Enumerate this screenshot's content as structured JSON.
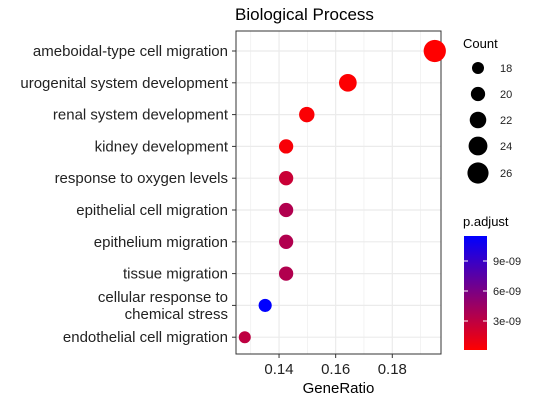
{
  "chart_data": {
    "type": "scatter",
    "title": "Biological Process",
    "xlabel": "GeneRatio",
    "ylabel": "",
    "xlim": [
      0.1248,
      0.1972
    ],
    "xticks": [
      0.14,
      0.16,
      0.18
    ],
    "xtick_labels": [
      "0.14",
      "0.16",
      "0.18"
    ],
    "grid": true,
    "categories": [
      "ameboidal-type cell migration",
      "urogenital system development",
      "renal system development",
      "kidney development",
      "response to oxygen levels",
      "epithelial cell migration",
      "epithelium migration",
      "tissue migration",
      "cellular response to\nchemical stress",
      "endothelial cell migration"
    ],
    "points": [
      {
        "term": "ameboidal-type cell migration",
        "gene_ratio": 0.195,
        "count": 27,
        "p_adjust": 1e-10
      },
      {
        "term": "urogenital system development",
        "gene_ratio": 0.1643,
        "count": 23,
        "p_adjust": 2e-10
      },
      {
        "term": "renal system development",
        "gene_ratio": 0.1498,
        "count": 21,
        "p_adjust": 3e-10
      },
      {
        "term": "kidney development",
        "gene_ratio": 0.1425,
        "count": 20,
        "p_adjust": 4e-10
      },
      {
        "term": "response to oxygen levels",
        "gene_ratio": 0.1425,
        "count": 20,
        "p_adjust": 2.5e-09
      },
      {
        "term": "epithelial cell migration",
        "gene_ratio": 0.1425,
        "count": 20,
        "p_adjust": 3.6e-09
      },
      {
        "term": "epithelium migration",
        "gene_ratio": 0.1425,
        "count": 20,
        "p_adjust": 3.6e-09
      },
      {
        "term": "tissue migration",
        "gene_ratio": 0.1425,
        "count": 20,
        "p_adjust": 3.6e-09
      },
      {
        "term": "cellular response to chemical stress",
        "gene_ratio": 0.1351,
        "count": 19,
        "p_adjust": 1.15e-08
      },
      {
        "term": "endothelial cell migration",
        "gene_ratio": 0.1279,
        "count": 18,
        "p_adjust": 3e-09
      }
    ],
    "size_legend": {
      "title": "Count",
      "values": [
        18,
        20,
        22,
        24,
        26
      ],
      "labels": [
        "18",
        "20",
        "22",
        "24",
        "26"
      ]
    },
    "color_legend": {
      "title": "p.adjust",
      "range": [
        1e-10,
        1.15e-08
      ],
      "ticks": [
        3e-09,
        6e-09,
        9e-09
      ],
      "tick_labels": [
        "3e-09",
        "6e-09",
        "9e-09"
      ],
      "low_color": "#ff0000",
      "high_color": "#0000ff"
    },
    "colors": {
      "low": "#ff0000",
      "high": "#0000ff",
      "grid": "#ebebeb",
      "panel_border": "#333333"
    }
  }
}
